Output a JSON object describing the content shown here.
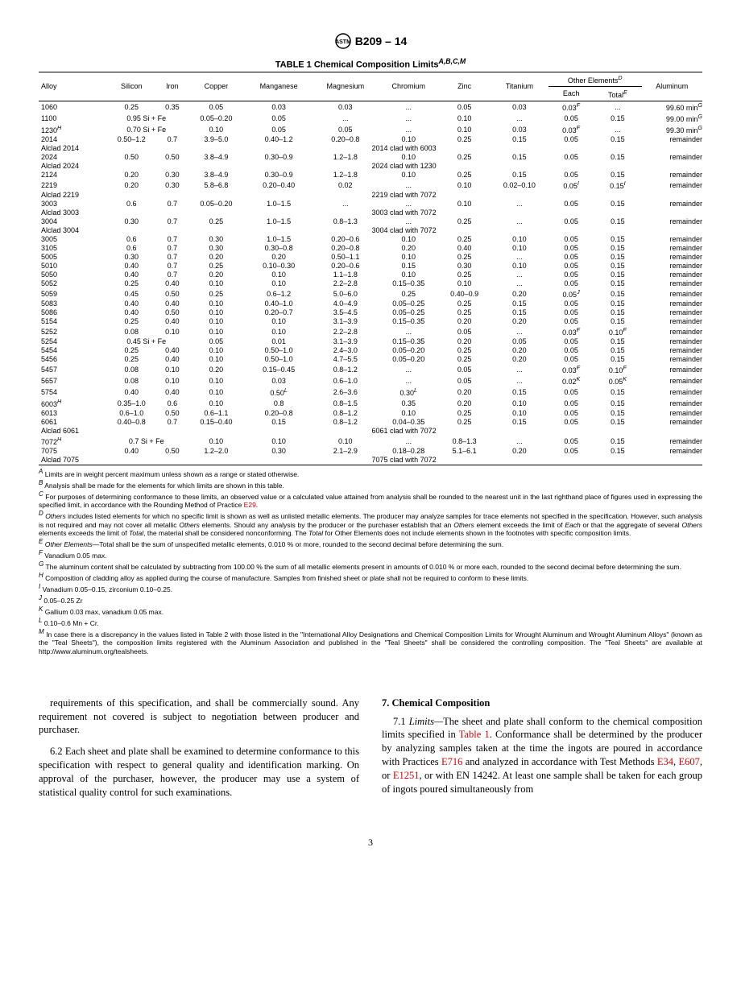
{
  "header": {
    "designation": "B209 – 14"
  },
  "table": {
    "title_prefix": "TABLE 1 Chemical Composition Limits",
    "title_sup": "A,B,C,M",
    "columns": [
      "Alloy",
      "Silicon",
      "Iron",
      "Copper",
      "Manganese",
      "Magnesium",
      "Chromium",
      "Zinc",
      "Titanium"
    ],
    "other_header": "Other Elements",
    "other_sup": "D",
    "other_sub": [
      "Each",
      "Total"
    ],
    "other_total_sup": "E",
    "aluminum_header": "Aluminum",
    "rows": [
      {
        "alloy": "1060",
        "si": "0.25",
        "fe": "0.35",
        "cu": "0.05",
        "mn": "0.03",
        "mg": "0.03",
        "cr": "...",
        "zn": "0.05",
        "ti": "0.03",
        "each": "0.03",
        "each_sup": "F",
        "total": "...",
        "al": "99.60 min",
        "al_sup": "G"
      },
      {
        "alloy": "1100",
        "sife": "0.95 Si + Fe",
        "cu": "0.05–0.20",
        "mn": "0.05",
        "mg": "...",
        "cr": "...",
        "zn": "0.10",
        "ti": "...",
        "each": "0.05",
        "total": "0.15",
        "al": "99.00 min",
        "al_sup": "G"
      },
      {
        "alloy": "1230",
        "alloy_sup": "H",
        "sife": "0.70 Si + Fe",
        "cu": "0.10",
        "mn": "0.05",
        "mg": "0.05",
        "cr": "...",
        "zn": "0.10",
        "ti": "0.03",
        "each": "0.03",
        "each_sup": "F",
        "total": "...",
        "al": "99.30 min",
        "al_sup": "G"
      },
      {
        "alloy": "2014",
        "si": "0.50–1.2",
        "fe": "0.7",
        "cu": "3.9–5.0",
        "mn": "0.40–1.2",
        "mg": "0.20–0.8",
        "cr": "0.10",
        "zn": "0.25",
        "ti": "0.15",
        "each": "0.05",
        "total": "0.15",
        "al": "remainder"
      },
      {
        "alloy": "Alclad 2014",
        "clad": "2014 clad with 6003"
      },
      {
        "alloy": "2024",
        "si": "0.50",
        "fe": "0.50",
        "cu": "3.8–4.9",
        "mn": "0.30–0.9",
        "mg": "1.2–1.8",
        "cr": "0.10",
        "zn": "0.25",
        "ti": "0.15",
        "each": "0.05",
        "total": "0.15",
        "al": "remainder"
      },
      {
        "alloy": "Alclad 2024",
        "clad": "2024 clad with 1230"
      },
      {
        "alloy": "2124",
        "si": "0.20",
        "fe": "0.30",
        "cu": "3.8–4.9",
        "mn": "0.30–0.9",
        "mg": "1.2–1.8",
        "cr": "0.10",
        "zn": "0.25",
        "ti": "0.15",
        "each": "0.05",
        "total": "0.15",
        "al": "remainder"
      },
      {
        "alloy": "2219",
        "si": "0.20",
        "fe": "0.30",
        "cu": "5.8–6.8",
        "mn": "0.20–0.40",
        "mg": "0.02",
        "cr": "...",
        "zn": "0.10",
        "ti": "0.02–0.10",
        "each": "0.05",
        "each_sup": "I",
        "total": "0.15",
        "total_sup": "I",
        "al": "remainder"
      },
      {
        "alloy": "Alclad 2219",
        "clad": "2219 clad with 7072"
      },
      {
        "alloy": "3003",
        "si": "0.6",
        "fe": "0.7",
        "cu": "0.05–0.20",
        "mn": "1.0–1.5",
        "mg": "...",
        "cr": "...",
        "zn": "0.10",
        "ti": "...",
        "each": "0.05",
        "total": "0.15",
        "al": "remainder"
      },
      {
        "alloy": "Alclad 3003",
        "clad": "3003 clad with 7072"
      },
      {
        "alloy": "3004",
        "si": "0.30",
        "fe": "0.7",
        "cu": "0.25",
        "mn": "1.0–1.5",
        "mg": "0.8–1.3",
        "cr": "...",
        "zn": "0.25",
        "ti": "...",
        "each": "0.05",
        "total": "0.15",
        "al": "remainder"
      },
      {
        "alloy": "Alclad 3004",
        "clad": "3004 clad with 7072"
      },
      {
        "alloy": "3005",
        "si": "0.6",
        "fe": "0.7",
        "cu": "0.30",
        "mn": "1.0–1.5",
        "mg": "0.20–0.6",
        "cr": "0.10",
        "zn": "0.25",
        "ti": "0.10",
        "each": "0.05",
        "total": "0.15",
        "al": "remainder"
      },
      {
        "alloy": "3105",
        "si": "0.6",
        "fe": "0.7",
        "cu": "0.30",
        "mn": "0.30–0.8",
        "mg": "0.20–0.8",
        "cr": "0.20",
        "zn": "0.40",
        "ti": "0.10",
        "each": "0.05",
        "total": "0.15",
        "al": "remainder"
      },
      {
        "alloy": "5005",
        "si": "0.30",
        "fe": "0.7",
        "cu": "0.20",
        "mn": "0.20",
        "mg": "0.50–1.1",
        "cr": "0.10",
        "zn": "0.25",
        "ti": "...",
        "each": "0.05",
        "total": "0.15",
        "al": "remainder"
      },
      {
        "alloy": "5010",
        "si": "0.40",
        "fe": "0.7",
        "cu": "0.25",
        "mn": "0.10–0.30",
        "mg": "0.20–0.6",
        "cr": "0.15",
        "zn": "0.30",
        "ti": "0.10",
        "each": "0.05",
        "total": "0.15",
        "al": "remainder"
      },
      {
        "alloy": "5050",
        "si": "0.40",
        "fe": "0.7",
        "cu": "0.20",
        "mn": "0.10",
        "mg": "1.1–1.8",
        "cr": "0.10",
        "zn": "0.25",
        "ti": "...",
        "each": "0.05",
        "total": "0.15",
        "al": "remainder"
      },
      {
        "alloy": "5052",
        "si": "0.25",
        "fe": "0.40",
        "cu": "0.10",
        "mn": "0.10",
        "mg": "2.2–2.8",
        "cr": "0.15–0.35",
        "zn": "0.10",
        "ti": "...",
        "each": "0.05",
        "total": "0.15",
        "al": "remainder"
      },
      {
        "alloy": "5059",
        "si": "0.45",
        "fe": "0.50",
        "cu": "0.25",
        "mn": "0.6–1.2",
        "mg": "5.0–6.0",
        "cr": "0.25",
        "zn": "0.40–0.9",
        "ti": "0.20",
        "each": "0.05",
        "each_sup": "J",
        "total": "0.15",
        "al": "remainder"
      },
      {
        "alloy": "5083",
        "si": "0.40",
        "fe": "0.40",
        "cu": "0.10",
        "mn": "0.40–1.0",
        "mg": "4.0–4.9",
        "cr": "0.05–0.25",
        "zn": "0.25",
        "ti": "0.15",
        "each": "0.05",
        "total": "0.15",
        "al": "remainder"
      },
      {
        "alloy": "5086",
        "si": "0.40",
        "fe": "0.50",
        "cu": "0.10",
        "mn": "0.20–0.7",
        "mg": "3.5–4.5",
        "cr": "0.05–0.25",
        "zn": "0.25",
        "ti": "0.15",
        "each": "0.05",
        "total": "0.15",
        "al": "remainder"
      },
      {
        "alloy": "5154",
        "si": "0.25",
        "fe": "0.40",
        "cu": "0.10",
        "mn": "0.10",
        "mg": "3.1–3.9",
        "cr": "0.15–0.35",
        "zn": "0.20",
        "ti": "0.20",
        "each": "0.05",
        "total": "0.15",
        "al": "remainder"
      },
      {
        "alloy": "5252",
        "si": "0.08",
        "fe": "0.10",
        "cu": "0.10",
        "mn": "0.10",
        "mg": "2.2–2.8",
        "cr": "...",
        "zn": "0.05",
        "ti": "...",
        "each": "0.03",
        "each_sup": "F",
        "total": "0.10",
        "total_sup": "F",
        "al": "remainder"
      },
      {
        "alloy": "5254",
        "sife": "0.45 Si + Fe",
        "cu": "0.05",
        "mn": "0.01",
        "mg": "3.1–3.9",
        "cr": "0.15–0.35",
        "zn": "0.20",
        "ti": "0.05",
        "each": "0.05",
        "total": "0.15",
        "al": "remainder"
      },
      {
        "alloy": "5454",
        "si": "0.25",
        "fe": "0.40",
        "cu": "0.10",
        "mn": "0.50–1.0",
        "mg": "2.4–3.0",
        "cr": "0.05–0.20",
        "zn": "0.25",
        "ti": "0.20",
        "each": "0.05",
        "total": "0.15",
        "al": "remainder"
      },
      {
        "alloy": "5456",
        "si": "0.25",
        "fe": "0.40",
        "cu": "0.10",
        "mn": "0.50–1.0",
        "mg": "4.7–5.5",
        "cr": "0.05–0.20",
        "zn": "0.25",
        "ti": "0.20",
        "each": "0.05",
        "total": "0.15",
        "al": "remainder"
      },
      {
        "alloy": "5457",
        "si": "0.08",
        "fe": "0.10",
        "cu": "0.20",
        "mn": "0.15–0.45",
        "mg": "0.8–1.2",
        "cr": "...",
        "zn": "0.05",
        "ti": "...",
        "each": "0.03",
        "each_sup": "F",
        "total": "0.10",
        "total_sup": "F",
        "al": "remainder"
      },
      {
        "alloy": "5657",
        "si": "0.08",
        "fe": "0.10",
        "cu": "0.10",
        "mn": "0.03",
        "mg": "0.6–1.0",
        "cr": "...",
        "zn": "0.05",
        "ti": "...",
        "each": "0.02",
        "each_sup": "K",
        "total": "0.05",
        "total_sup": "K",
        "al": "remainder"
      },
      {
        "alloy": "5754",
        "si": "0.40",
        "fe": "0.40",
        "cu": "0.10",
        "mn": "0.50",
        "mn_sup": "L",
        "mg": "2.6–3.6",
        "cr": "0.30",
        "cr_sup": "L",
        "zn": "0.20",
        "ti": "0.15",
        "each": "0.05",
        "total": "0.15",
        "al": "remainder"
      },
      {
        "alloy": "6003",
        "alloy_sup": "H",
        "si": "0.35–1.0",
        "fe": "0.6",
        "cu": "0.10",
        "mn": "0.8",
        "mg": "0.8–1.5",
        "cr": "0.35",
        "zn": "0.20",
        "ti": "0.10",
        "each": "0.05",
        "total": "0.15",
        "al": "remainder"
      },
      {
        "alloy": "6013",
        "si": "0.6–1.0",
        "fe": "0.50",
        "cu": "0.6–1.1",
        "mn": "0.20–0.8",
        "mg": "0.8–1.2",
        "cr": "0.10",
        "zn": "0.25",
        "ti": "0.10",
        "each": "0.05",
        "total": "0.15",
        "al": "remainder"
      },
      {
        "alloy": "6061",
        "si": "0.40–0.8",
        "fe": "0.7",
        "cu": "0.15–0.40",
        "mn": "0.15",
        "mg": "0.8–1.2",
        "cr": "0.04–0.35",
        "zn": "0.25",
        "ti": "0.15",
        "each": "0.05",
        "total": "0.15",
        "al": "remainder"
      },
      {
        "alloy": "Alclad 6061",
        "clad": "6061 clad with 7072"
      },
      {
        "alloy": "7072",
        "alloy_sup": "H",
        "sife": "0.7 Si + Fe",
        "cu": "0.10",
        "mn": "0.10",
        "mg": "0.10",
        "cr": "...",
        "zn": "0.8–1.3",
        "ti": "...",
        "each": "0.05",
        "total": "0.15",
        "al": "remainder"
      },
      {
        "alloy": "7075",
        "si": "0.40",
        "fe": "0.50",
        "cu": "1.2–2.0",
        "mn": "0.30",
        "mg": "2.1–2.9",
        "cr": "0.18–0.28",
        "zn": "5.1–6.1",
        "ti": "0.20",
        "each": "0.05",
        "total": "0.15",
        "al": "remainder"
      },
      {
        "alloy": "Alclad 7075",
        "clad": "7075 clad with 7072"
      }
    ]
  },
  "footnotes": [
    {
      "sup": "A",
      "text": "Limits are in weight percent maximum unless shown as a range or stated otherwise."
    },
    {
      "sup": "B",
      "text": " Analysis shall be made for the elements for which limits are shown in this table."
    },
    {
      "sup": "C",
      "text": "For purposes of determining conformance to these limits, an observed value or a calculated value attained from analysis shall be rounded to the nearest unit in the last righthand place of figures used in expressing the specified limit, in accordance with the Rounding Method of Practice ",
      "link": "E29",
      "after": "."
    },
    {
      "sup": "D",
      "text": "Others includes listed elements for which no specific limit is shown as well as unlisted metallic elements. The producer may analyze samples for trace elements not specified in the specification. However, such analysis is not required and may not cover all metallic Others elements. Should any analysis by the producer or the purchaser establish that an Others element exceeds the limit of Each or that the aggregate of several Others elements exceeds the limit of Total, the material shall be considered nonconforming. The Total for Other Elements does not include elements shown in the footnotes with specific composition limits.",
      "italic_prefix": true
    },
    {
      "sup": "E",
      "text": " Other Elements—Total shall be the sum of unspecified metallic elements, 0.010 % or more, rounded to the second decimal before determining the sum.",
      "italic_prefix": true
    },
    {
      "sup": "F",
      "text": "Vanadium 0.05 max."
    },
    {
      "sup": "G",
      "text": "The aluminum content shall be calculated by subtracting from 100.00 % the sum of all metallic elements present in amounts of 0.010 % or more each, rounded to the second decimal before determining the sum."
    },
    {
      "sup": "H",
      "text": "Composition of cladding alloy as applied during the course of manufacture. Samples from finished sheet or plate shall not be required to conform to these limits."
    },
    {
      "sup": "I",
      "text": "Vanadium 0.05–0.15, zirconium 0.10–0.25."
    },
    {
      "sup": "J",
      "text": "0.05–0.25 Zr"
    },
    {
      "sup": "K",
      "text": "Gallium 0.03 max, vanadium 0.05 max."
    },
    {
      "sup": "L",
      "text": "0.10–0.6 Mn + Cr."
    },
    {
      "sup": "M",
      "text": "In case there is a discrepancy in the values listed in Table 2 with those listed in the \"International Alloy Designations and Chemical Composition Limits for Wrought Aluminum and Wrought Aluminum Alloys\" (known as the \"Teal Sheets\"), the composition limits registered with the Aluminum Association and published in the \"Teal Sheets\" shall be considered the controlling composition. The \"Teal Sheets\" are available at http://www.aluminum.org/tealsheets."
    }
  ],
  "body": {
    "left": {
      "p1": "requirements of this specification, and shall be commercially sound. Any requirement not covered is subject to negotiation between producer and purchaser.",
      "p2": "6.2 Each sheet and plate shall be examined to determine conformance to this specification with respect to general quality and identification marking. On approval of the purchaser, however, the producer may use a system of statistical quality control for such examinations."
    },
    "right": {
      "title": "7. Chemical Composition",
      "p1_pre": "7.1 ",
      "p1_it": "Limits—",
      "p1_post": "The sheet and plate shall conform to the chemical composition limits specified in ",
      "p1_link": "Table 1",
      "p1_after": ". Conformance shall be determined by the producer by analyzing samples taken at the time the ingots are poured in accordance with Practices ",
      "p1_link2": "E716",
      "p1_mid2": " and analyzed in accordance with Test Methods ",
      "p1_link3": "E34",
      "p1_sep3": ", ",
      "p1_link4": "E607",
      "p1_sep4": ", or ",
      "p1_link5": "E1251",
      "p1_tail": ", or with EN 14242. At least one sample shall be taken for each group of ingots poured simultaneously from"
    }
  },
  "page_number": "3"
}
